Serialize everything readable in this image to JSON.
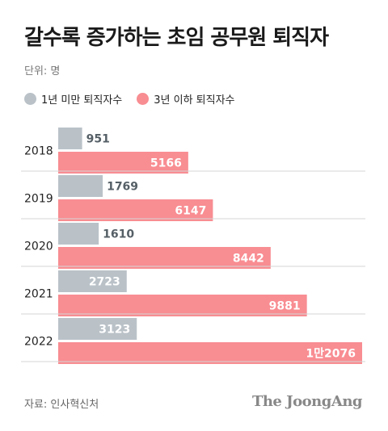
{
  "title": "갈수록 증가하는 초임 공무원 퇴직자",
  "unit": "단위: 명",
  "source": "자료: 인사혁신처",
  "brand": "The JoongAng",
  "colors": {
    "short": "#bac2c8",
    "long": "#f88d92",
    "short_label": "#555f66",
    "long_label": "#ffffff"
  },
  "chart_data": {
    "type": "bar",
    "orientation": "horizontal",
    "categories": [
      "2018",
      "2019",
      "2020",
      "2021",
      "2022"
    ],
    "series": [
      {
        "name": "1년 미만 퇴직자수",
        "values": [
          951,
          1769,
          1610,
          2723,
          3123
        ],
        "labels": [
          "951",
          "1769",
          "1610",
          "2723",
          "3123"
        ]
      },
      {
        "name": "3년 이하 퇴직자수",
        "values": [
          5166,
          6147,
          8442,
          9881,
          12076
        ],
        "labels": [
          "5166",
          "6147",
          "8442",
          "9881",
          "1만2076"
        ]
      }
    ],
    "xlim": [
      0,
      12076
    ],
    "grid": false,
    "legend": "top-left"
  }
}
